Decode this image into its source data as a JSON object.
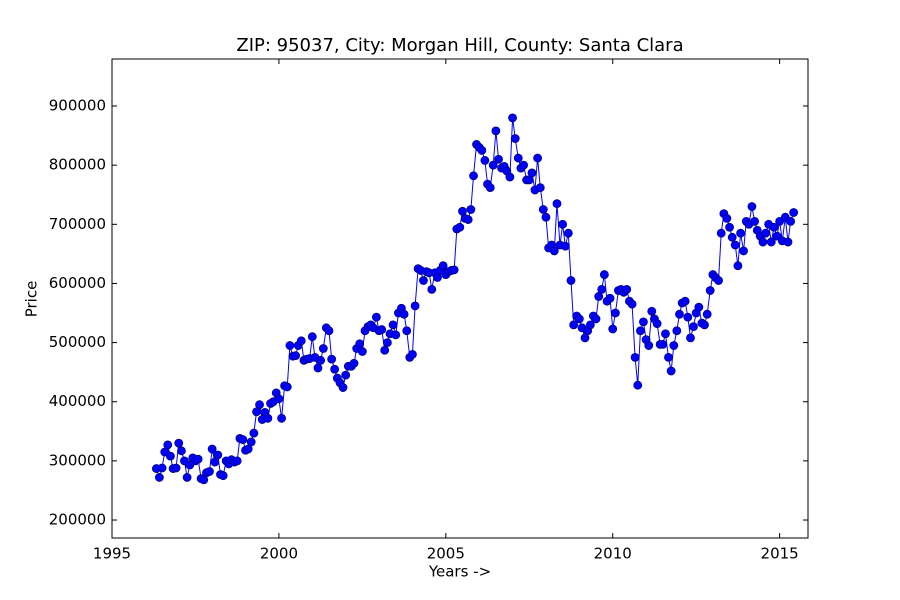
{
  "chart_data": {
    "type": "line",
    "title": "ZIP: 95037, City: Morgan Hill, County: Santa Clara",
    "xlabel": "Years ->",
    "ylabel": "Price",
    "x": [
      1996.33,
      1996.42,
      1996.5,
      1996.58,
      1996.67,
      1996.75,
      1996.83,
      1996.92,
      1997.0,
      1997.08,
      1997.17,
      1997.25,
      1997.33,
      1997.42,
      1997.5,
      1997.58,
      1997.67,
      1997.75,
      1997.83,
      1997.92,
      1998.0,
      1998.08,
      1998.17,
      1998.25,
      1998.33,
      1998.42,
      1998.5,
      1998.58,
      1998.67,
      1998.75,
      1998.83,
      1998.92,
      1999.0,
      1999.08,
      1999.17,
      1999.25,
      1999.33,
      1999.42,
      1999.5,
      1999.58,
      1999.67,
      1999.75,
      1999.83,
      1999.92,
      2000.0,
      2000.08,
      2000.17,
      2000.25,
      2000.33,
      2000.42,
      2000.5,
      2000.58,
      2000.67,
      2000.75,
      2000.83,
      2000.92,
      2001.0,
      2001.08,
      2001.17,
      2001.25,
      2001.33,
      2001.42,
      2001.5,
      2001.58,
      2001.67,
      2001.75,
      2001.83,
      2001.92,
      2002.0,
      2002.08,
      2002.17,
      2002.25,
      2002.33,
      2002.42,
      2002.5,
      2002.58,
      2002.67,
      2002.75,
      2002.83,
      2002.92,
      2003.0,
      2003.08,
      2003.17,
      2003.25,
      2003.33,
      2003.42,
      2003.5,
      2003.58,
      2003.67,
      2003.75,
      2003.83,
      2003.92,
      2004.0,
      2004.08,
      2004.17,
      2004.25,
      2004.33,
      2004.42,
      2004.5,
      2004.58,
      2004.67,
      2004.75,
      2004.83,
      2004.92,
      2005.0,
      2005.08,
      2005.17,
      2005.25,
      2005.33,
      2005.42,
      2005.5,
      2005.58,
      2005.67,
      2005.75,
      2005.83,
      2005.92,
      2006.0,
      2006.08,
      2006.17,
      2006.25,
      2006.33,
      2006.42,
      2006.5,
      2006.58,
      2006.67,
      2006.75,
      2006.83,
      2006.92,
      2007.0,
      2007.08,
      2007.17,
      2007.25,
      2007.33,
      2007.42,
      2007.5,
      2007.58,
      2007.67,
      2007.75,
      2007.83,
      2007.92,
      2008.0,
      2008.08,
      2008.17,
      2008.25,
      2008.33,
      2008.42,
      2008.5,
      2008.58,
      2008.67,
      2008.75,
      2008.83,
      2008.92,
      2009.0,
      2009.08,
      2009.17,
      2009.25,
      2009.33,
      2009.42,
      2009.5,
      2009.58,
      2009.67,
      2009.75,
      2009.83,
      2009.92,
      2010.0,
      2010.08,
      2010.17,
      2010.25,
      2010.33,
      2010.42,
      2010.5,
      2010.58,
      2010.67,
      2010.75,
      2010.83,
      2010.92,
      2011.0,
      2011.08,
      2011.17,
      2011.25,
      2011.33,
      2011.42,
      2011.5,
      2011.58,
      2011.67,
      2011.75,
      2011.83,
      2011.92,
      2012.0,
      2012.08,
      2012.17,
      2012.25,
      2012.33,
      2012.42,
      2012.5,
      2012.58,
      2012.67,
      2012.75,
      2012.83,
      2012.92,
      2013.0,
      2013.08,
      2013.17,
      2013.25,
      2013.33,
      2013.42,
      2013.5,
      2013.58,
      2013.67,
      2013.75,
      2013.83,
      2013.92,
      2014.0,
      2014.08,
      2014.17,
      2014.25,
      2014.33,
      2014.42,
      2014.5,
      2014.58,
      2014.67,
      2014.75,
      2014.83,
      2014.92,
      2015.0,
      2015.08,
      2015.17,
      2015.25,
      2015.33,
      2015.42
    ],
    "series": [
      {
        "color": "#0000ff",
        "marker_color": "#0000ff",
        "marker_edge": "#000080",
        "values": [
          287000,
          272000,
          288000,
          315000,
          327000,
          308000,
          287000,
          288000,
          330000,
          317000,
          300000,
          272000,
          293000,
          305000,
          300000,
          303000,
          270000,
          268000,
          280000,
          282000,
          320000,
          298000,
          310000,
          277000,
          275000,
          300000,
          295000,
          302000,
          298000,
          300000,
          338000,
          336000,
          318000,
          320000,
          332000,
          347000,
          383000,
          395000,
          370000,
          382000,
          372000,
          397000,
          400000,
          415000,
          405000,
          372000,
          427000,
          425000,
          495000,
          477000,
          478000,
          495000,
          503000,
          470000,
          472000,
          473000,
          510000,
          475000,
          457000,
          470000,
          490000,
          525000,
          520000,
          472000,
          455000,
          440000,
          432000,
          424000,
          445000,
          460000,
          460000,
          465000,
          490000,
          498000,
          485000,
          520000,
          527000,
          530000,
          525000,
          543000,
          520000,
          522000,
          487000,
          500000,
          515000,
          530000,
          513000,
          550000,
          558000,
          548000,
          520000,
          475000,
          480000,
          562000,
          625000,
          622000,
          605000,
          620000,
          618000,
          590000,
          618000,
          610000,
          622000,
          630000,
          615000,
          620000,
          622000,
          623000,
          692000,
          695000,
          722000,
          710000,
          708000,
          725000,
          782000,
          835000,
          830000,
          825000,
          808000,
          768000,
          762000,
          800000,
          858000,
          810000,
          795000,
          798000,
          790000,
          780000,
          880000,
          845000,
          812000,
          795000,
          800000,
          775000,
          775000,
          787000,
          758000,
          812000,
          762000,
          725000,
          712000,
          660000,
          665000,
          655000,
          735000,
          665000,
          700000,
          663000,
          685000,
          605000,
          530000,
          545000,
          540000,
          525000,
          508000,
          520000,
          530000,
          545000,
          540000,
          578000,
          590000,
          615000,
          570000,
          575000,
          523000,
          550000,
          588000,
          590000,
          585000,
          590000,
          570000,
          565000,
          475000,
          428000,
          520000,
          535000,
          505000,
          495000,
          553000,
          540000,
          532000,
          497000,
          497000,
          515000,
          475000,
          452000,
          495000,
          520000,
          548000,
          567000,
          570000,
          543000,
          508000,
          527000,
          550000,
          560000,
          533000,
          530000,
          548000,
          588000,
          615000,
          610000,
          605000,
          685000,
          718000,
          710000,
          695000,
          678000,
          665000,
          630000,
          685000,
          655000,
          705000,
          700000,
          730000,
          705000,
          690000,
          680000,
          670000,
          685000,
          700000,
          670000,
          695000,
          680000,
          705000,
          672000,
          712000,
          670000,
          705000,
          720000
        ]
      }
    ],
    "xlim": [
      1995,
      2015.85
    ],
    "ylim": [
      169600,
      979500
    ],
    "xticks": [
      1995,
      2000,
      2005,
      2010,
      2015
    ],
    "yticks": [
      200000,
      300000,
      400000,
      500000,
      600000,
      700000,
      800000,
      900000
    ],
    "grid": false
  }
}
